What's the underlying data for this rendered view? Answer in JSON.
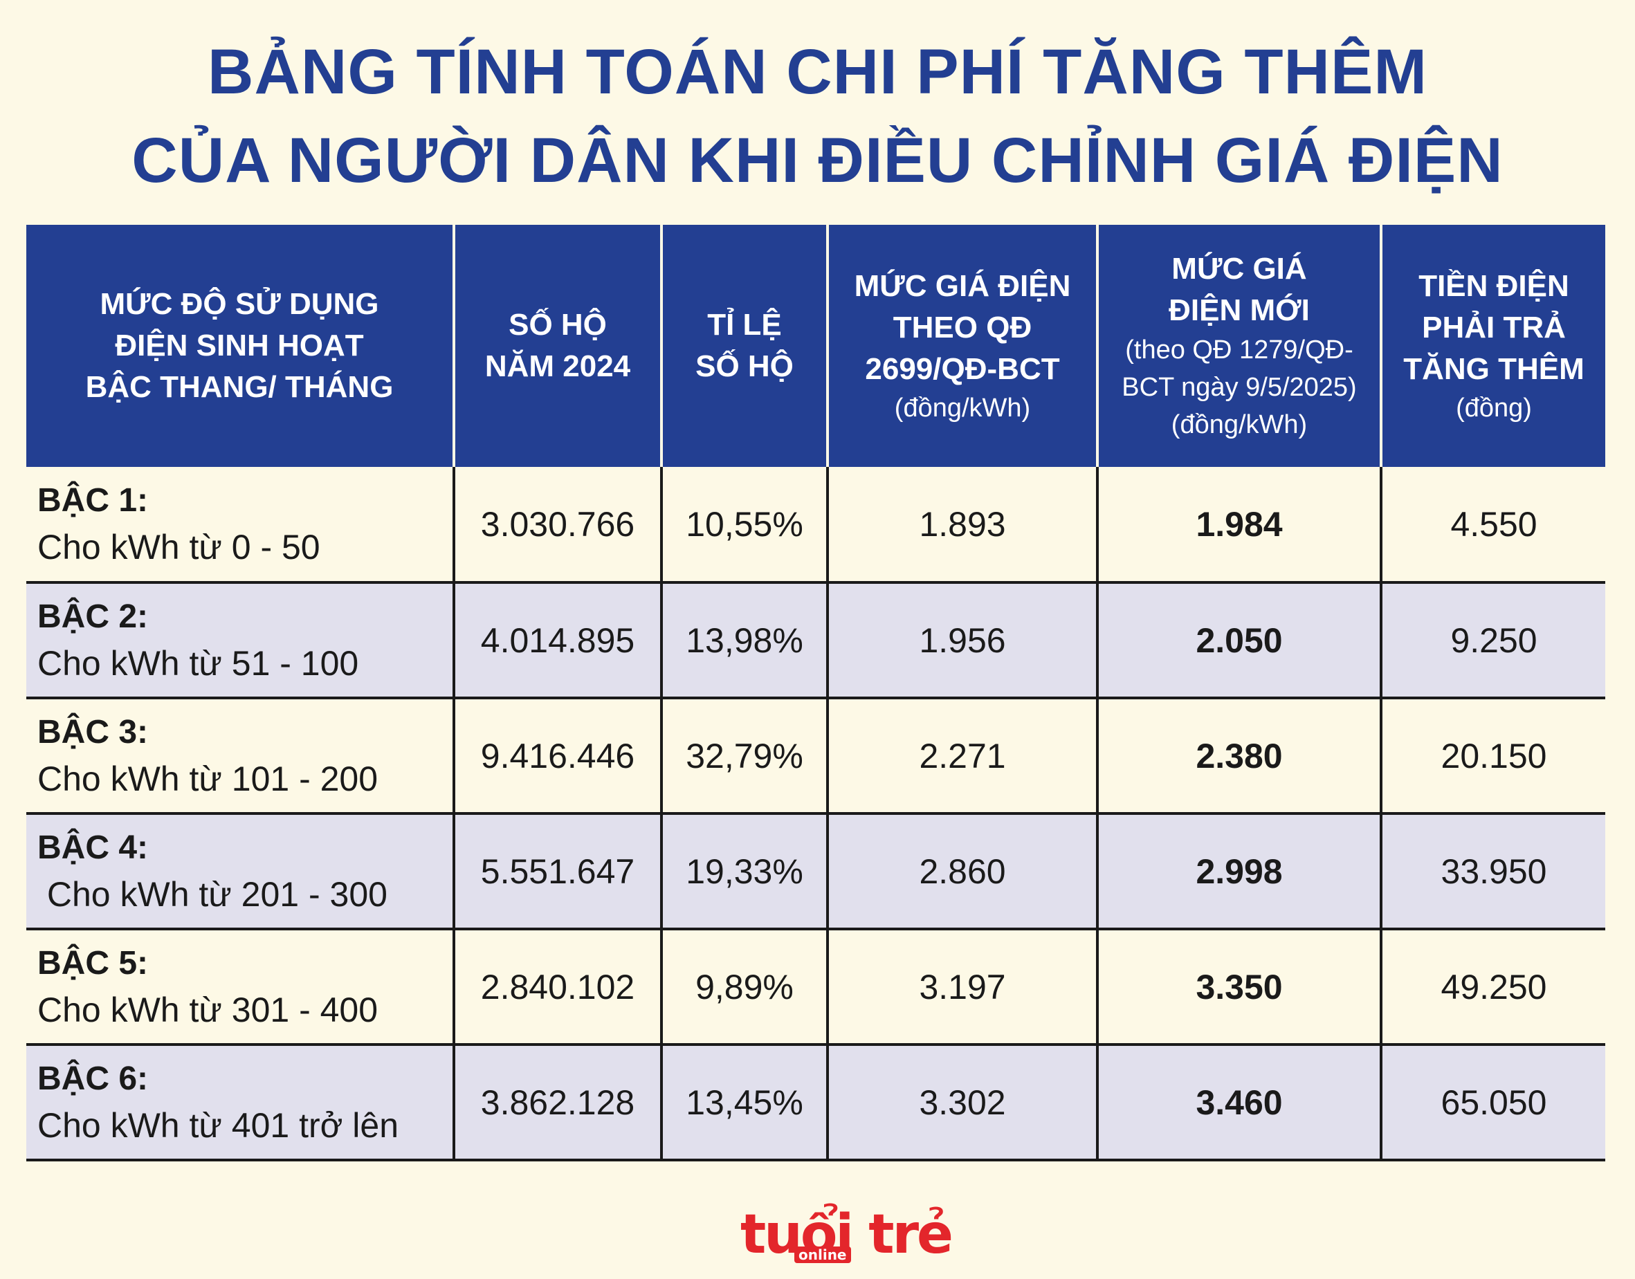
{
  "title": {
    "line1": "BẢNG TÍNH TOÁN CHI PHÍ TĂNG THÊM",
    "line2": "CỦA NGƯỜI DÂN KHI ĐIỀU CHỈNH GIÁ ĐIỆN"
  },
  "header": {
    "col1": [
      "MỨC ĐỘ SỬ DỤNG",
      "ĐIỆN SINH HOẠT",
      "BẬC THANG/ THÁNG"
    ],
    "col2": [
      "SỐ HỘ",
      "NĂM 2024"
    ],
    "col3": [
      "TỈ LỆ",
      "SỐ HỘ"
    ],
    "col4": [
      "MỨC GIÁ ĐIỆN",
      "THEO QĐ",
      "2699/QĐ-BCT"
    ],
    "col4_sub": "(đồng/kWh)",
    "col5": [
      "MỨC GIÁ",
      "ĐIỆN MỚI"
    ],
    "col5_sub": [
      "(theo QĐ 1279/QĐ-",
      "BCT ngày 9/5/2025)",
      "(đồng/kWh)"
    ],
    "col6": [
      "TIỀN ĐIỆN",
      "PHẢI TRẢ",
      "TĂNG THÊM"
    ],
    "col6_sub": "(đồng)"
  },
  "chart_data": {
    "type": "table",
    "rows": [
      {
        "tier": "BẬC 1:",
        "range": "Cho kWh từ 0 - 50",
        "households": "3.030.766",
        "ratio": "10,55%",
        "old_price": "1.893",
        "new_price": "1.984",
        "extra": "4.550"
      },
      {
        "tier": "BẬC 2:",
        "range": "Cho kWh từ 51 - 100",
        "households": "4.014.895",
        "ratio": "13,98%",
        "old_price": "1.956",
        "new_price": "2.050",
        "extra": "9.250"
      },
      {
        "tier": "BẬC 3:",
        "range": "Cho kWh từ 101 - 200",
        "households": "9.416.446",
        "ratio": "32,79%",
        "old_price": "2.271",
        "new_price": "2.380",
        "extra": "20.150"
      },
      {
        "tier": "BẬC 4:",
        "range": " Cho kWh từ 201 - 300",
        "households": "5.551.647",
        "ratio": "19,33%",
        "old_price": "2.860",
        "new_price": "2.998",
        "extra": "33.950"
      },
      {
        "tier": "BẬC 5:",
        "range": "Cho kWh từ 301 - 400",
        "households": "2.840.102",
        "ratio": "9,89%",
        "old_price": "3.197",
        "new_price": "3.350",
        "extra": "49.250"
      },
      {
        "tier": "BẬC 6:",
        "range": "Cho kWh từ 401 trở lên",
        "households": "3.862.128",
        "ratio": "13,45%",
        "old_price": "3.302",
        "new_price": "3.460",
        "extra": "65.050"
      }
    ]
  },
  "logo": {
    "main": "tuổi trẻ",
    "sub": "online"
  },
  "colors": {
    "header_bg": "#233f92",
    "title": "#233f92",
    "background": "#fdf9e6",
    "alt_row": "#e1e0ed",
    "logo": "#e3262b"
  }
}
